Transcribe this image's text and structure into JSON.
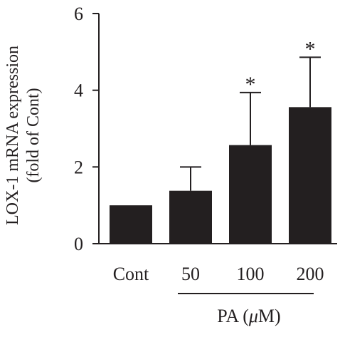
{
  "chart_data": {
    "type": "bar",
    "categories": [
      "Cont",
      "50",
      "100",
      "200"
    ],
    "values": [
      1.0,
      1.38,
      2.57,
      3.56
    ],
    "errors": [
      0.0,
      0.62,
      1.37,
      1.3
    ],
    "significance": [
      "",
      "",
      "*",
      "*"
    ],
    "ylabel_line1": "LOX-1 mRNA expression",
    "ylabel_line2": "(fold of Cont)",
    "group_label_prefix": "PA (",
    "group_label_unit_mu": "μ",
    "group_label_suffix": "M)",
    "ylim": [
      0,
      6
    ],
    "yticks": [
      "0",
      "2",
      "4",
      "6"
    ],
    "bar_color": "#231f20",
    "grid": false
  }
}
